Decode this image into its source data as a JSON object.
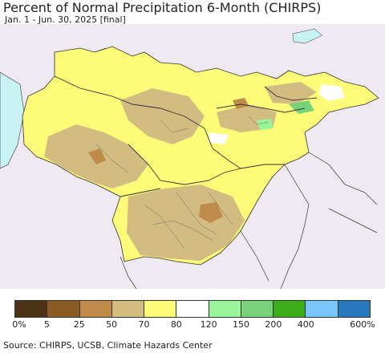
{
  "title": "Percent of Normal Precipitation 6-Month (CHIRPS)",
  "subtitle": "Jan. 1 - Jun. 30, 2025 [final]",
  "source": "Source: CHIRPS, UCSB, Climate Hazards Center",
  "colors": {
    "background": "#efeaf1",
    "water": "#c8f2f4",
    "border": "#333333"
  },
  "legend": {
    "swatches": [
      "#4a3415",
      "#8c5a25",
      "#c08a49",
      "#d2bc82",
      "#fdfb77",
      "#ffffff",
      "#98f59a",
      "#77d27a",
      "#3aad18",
      "#78c6fa",
      "#2876bc"
    ],
    "labels": [
      "0%",
      "5",
      "25",
      "50",
      "70",
      "80",
      "120",
      "150",
      "200",
      "400",
      "600%"
    ]
  }
}
